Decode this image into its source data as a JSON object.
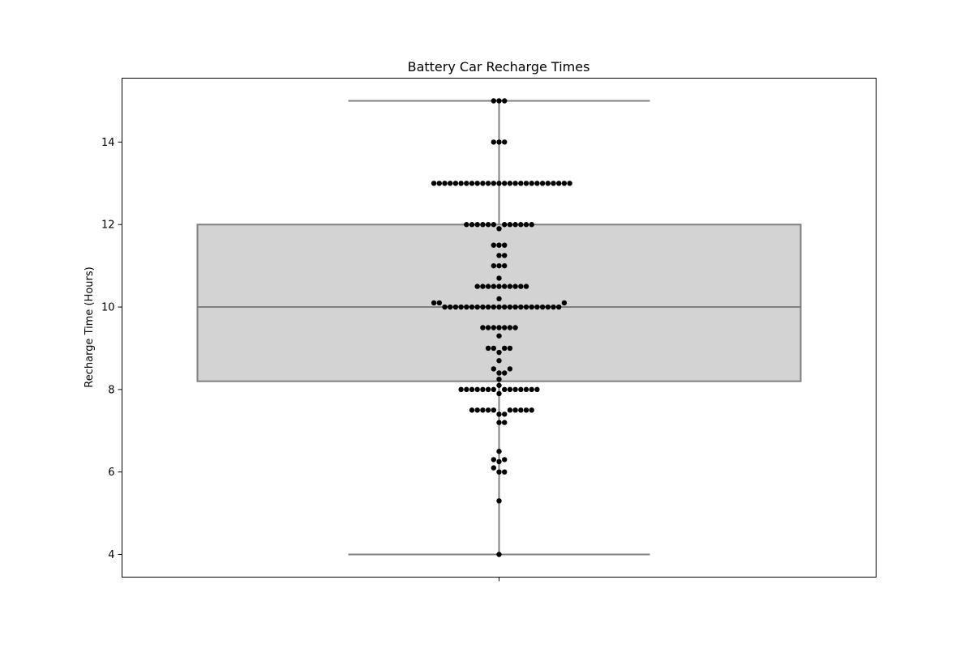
{
  "chart_data": {
    "type": "box",
    "title": "Battery Car Recharge Times",
    "xlabel": "",
    "ylabel": "Recharge Time (Hours)",
    "ylim": [
      3.45,
      15.55
    ],
    "yticks": [
      4,
      6,
      8,
      10,
      12,
      14
    ],
    "grid": false,
    "box": {
      "min": 4,
      "q1": 8.2,
      "median": 10,
      "q3": 12,
      "max": 15,
      "fill_color": "#d3d3d3",
      "line_color": "#808080"
    },
    "swarm": {
      "color": "#000000",
      "values": [
        4.0,
        5.3,
        6.0,
        6.0,
        6.1,
        6.25,
        6.3,
        6.3,
        6.5,
        7.2,
        7.2,
        7.4,
        7.4,
        7.5,
        7.5,
        7.5,
        7.5,
        7.5,
        7.5,
        7.5,
        7.5,
        7.5,
        7.5,
        7.9,
        8.0,
        8.0,
        8.0,
        8.0,
        8.0,
        8.0,
        8.0,
        8.0,
        8.0,
        8.0,
        8.0,
        8.0,
        8.0,
        8.0,
        8.1,
        8.25,
        8.4,
        8.4,
        8.5,
        8.5,
        8.7,
        8.9,
        9.0,
        9.0,
        9.0,
        9.0,
        9.3,
        9.5,
        9.5,
        9.5,
        9.5,
        9.5,
        9.5,
        9.5,
        10.0,
        10.0,
        10.0,
        10.0,
        10.0,
        10.0,
        10.0,
        10.0,
        10.0,
        10.0,
        10.0,
        10.0,
        10.0,
        10.0,
        10.0,
        10.0,
        10.0,
        10.0,
        10.0,
        10.0,
        10.0,
        10.0,
        10.1,
        10.1,
        10.1,
        10.2,
        10.5,
        10.5,
        10.5,
        10.5,
        10.5,
        10.5,
        10.5,
        10.5,
        10.5,
        10.5,
        10.7,
        11.0,
        11.0,
        11.0,
        11.25,
        11.25,
        11.5,
        11.5,
        11.5,
        11.9,
        12.0,
        12.0,
        12.0,
        12.0,
        12.0,
        12.0,
        12.0,
        12.0,
        12.0,
        12.0,
        12.0,
        12.0,
        13.0,
        13.0,
        13.0,
        13.0,
        13.0,
        13.0,
        13.0,
        13.0,
        13.0,
        13.0,
        13.0,
        13.0,
        13.0,
        13.0,
        13.0,
        13.0,
        13.0,
        13.0,
        13.0,
        13.0,
        13.0,
        13.0,
        13.0,
        13.0,
        13.0,
        13.0,
        14.0,
        14.0,
        14.0,
        15.0,
        15.0,
        15.0
      ]
    }
  }
}
